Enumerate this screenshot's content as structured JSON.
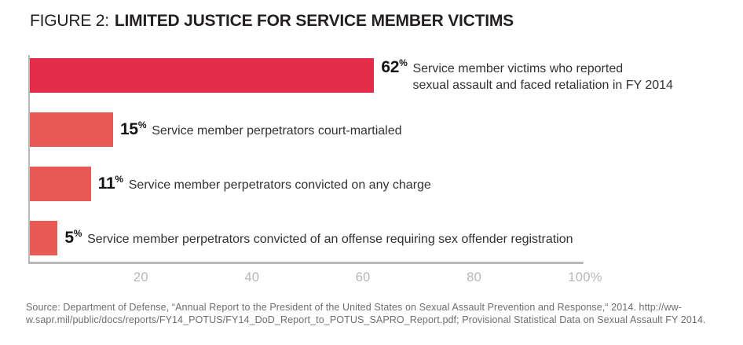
{
  "title": {
    "prefix": "FIGURE 2:",
    "main": "LIMITED JUSTICE FOR SERVICE MEMBER VICTIMS"
  },
  "chart_data": {
    "type": "bar",
    "orientation": "horizontal",
    "unit": "%",
    "xlim": [
      0,
      100
    ],
    "grid": false,
    "axis_color": "#b7b9bb",
    "tick_label_color": "#b4b6b8",
    "highlight_bar_color": "#e22c4a",
    "default_bar_color": "#ea5a54",
    "x_ticks": [
      {
        "value": 20,
        "label": "20"
      },
      {
        "value": 40,
        "label": "40"
      },
      {
        "value": 60,
        "label": "60"
      },
      {
        "value": 80,
        "label": "80"
      },
      {
        "value": 100,
        "label": "100%"
      }
    ],
    "rows": [
      {
        "value": 62,
        "color": "#e22c4a",
        "label": "Service member victims who reported sexual assault and faced retaliation in FY 2014",
        "label_lines": [
          "Service member victims who reported",
          "sexual assault and faced retaliation in FY 2014"
        ]
      },
      {
        "value": 15,
        "color": "#ea5a54",
        "label": "Service member perpetrators court-martialed",
        "label_lines": [
          "Service member perpetrators court-martialed"
        ]
      },
      {
        "value": 11,
        "color": "#ea5a54",
        "label": "Service member perpetrators convicted on any charge",
        "label_lines": [
          "Service member perpetrators convicted on any charge"
        ]
      },
      {
        "value": 5,
        "color": "#ea5a54",
        "label": "Service member perpetrators convicted of an offense requiring sex offender registration",
        "label_lines": [
          "Service member perpetrators convicted of an offense requiring sex offender registration"
        ]
      }
    ]
  },
  "source": {
    "line1": "Source: Department of Defense, “Annual Report to the President of the United States on Sexual Assault Prevention and Response,“ 2014. http://ww-",
    "line2": "w.sapr.mil/public/docs/reports/FY14_POTUS/FY14_DoD_Report_to_POTUS_SAPRO_Report.pdf; Provisional Statistical Data on Sexual Assault FY 2014."
  }
}
